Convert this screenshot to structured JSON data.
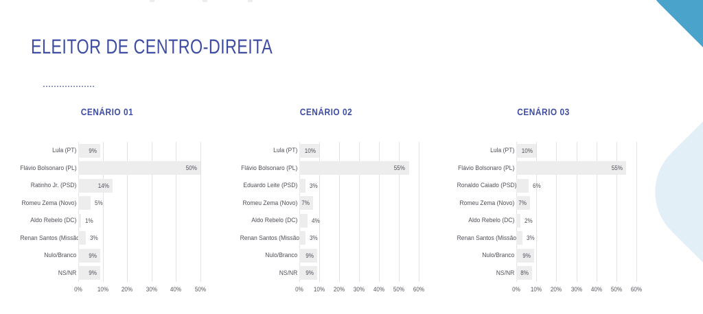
{
  "title": "ELEITOR DE CENTRO-DIREITA",
  "colors": {
    "title_blue": "#3e4da3",
    "heading_blue": "#3e4da3",
    "bar_fill": "#ededee",
    "gridline": "#e3e3e7",
    "label_text": "#4f5058",
    "blob_top_blue": "#4aa3cb",
    "blob_bottom_blue": "#e3eff6",
    "dotted_underline": "#8e97bf"
  },
  "chart_data": [
    {
      "type": "bar",
      "orientation": "horizontal",
      "title": "CENÁRIO 01",
      "categories": [
        "Lula (PT)",
        "Flávio Bolsonaro (PL)",
        "Ratinho Jr. (PSD)",
        "Romeu Zema (Novo)",
        "Aldo Rebelo (DC)",
        "Renan Santos (Missão)",
        "Nulo/Branco",
        "NS/NR"
      ],
      "values": [
        9,
        50,
        14,
        5,
        1,
        3,
        9,
        9
      ],
      "value_labels": [
        "9%",
        "50%",
        "14%",
        "5%",
        "1%",
        "3%",
        "9%",
        "9%"
      ],
      "xlim": [
        0,
        50
      ],
      "tick_step": 10,
      "ticks": [
        "0%",
        "10%",
        "20%",
        "30%",
        "40%",
        "50%"
      ],
      "grid": true,
      "legend": null
    },
    {
      "type": "bar",
      "orientation": "horizontal",
      "title": "CENÁRIO 02",
      "categories": [
        "Lula (PT)",
        "Flávio Bolsonaro (PL)",
        "Eduardo Leite (PSD)",
        "Romeu Zema (Novo)",
        "Aldo Rebelo (DC)",
        "Renan Santos (Missão)",
        "Nulo/Branco",
        "NS/NR"
      ],
      "values": [
        10,
        55,
        3,
        7,
        4,
        3,
        9,
        9
      ],
      "value_labels": [
        "10%",
        "55%",
        "3%",
        "7%",
        "4%",
        "3%",
        "9%",
        "9%"
      ],
      "xlim": [
        0,
        60
      ],
      "tick_step": 10,
      "ticks": [
        "0%",
        "10%",
        "20%",
        "30%",
        "40%",
        "50%",
        "60%"
      ],
      "grid": true,
      "legend": null
    },
    {
      "type": "bar",
      "orientation": "horizontal",
      "title": "CENÁRIO 03",
      "categories": [
        "Lula (PT)",
        "Flávio Bolsonaro (PL)",
        "Ronaldo Caiado (PSD)",
        "Romeu Zema (Novo)",
        "Aldo Rebelo (DC)",
        "Renan Santos (Missão)",
        "Nulo/Branco",
        "NS/NR"
      ],
      "values": [
        10,
        55,
        6,
        7,
        2,
        3,
        9,
        8
      ],
      "value_labels": [
        "10%",
        "55%",
        "6%",
        "7%",
        "2%",
        "3%",
        "9%",
        "8%"
      ],
      "xlim": [
        0,
        60
      ],
      "tick_step": 10,
      "ticks": [
        "0%",
        "10%",
        "20%",
        "30%",
        "40%",
        "50%",
        "60%"
      ],
      "grid": true,
      "legend": null
    }
  ]
}
